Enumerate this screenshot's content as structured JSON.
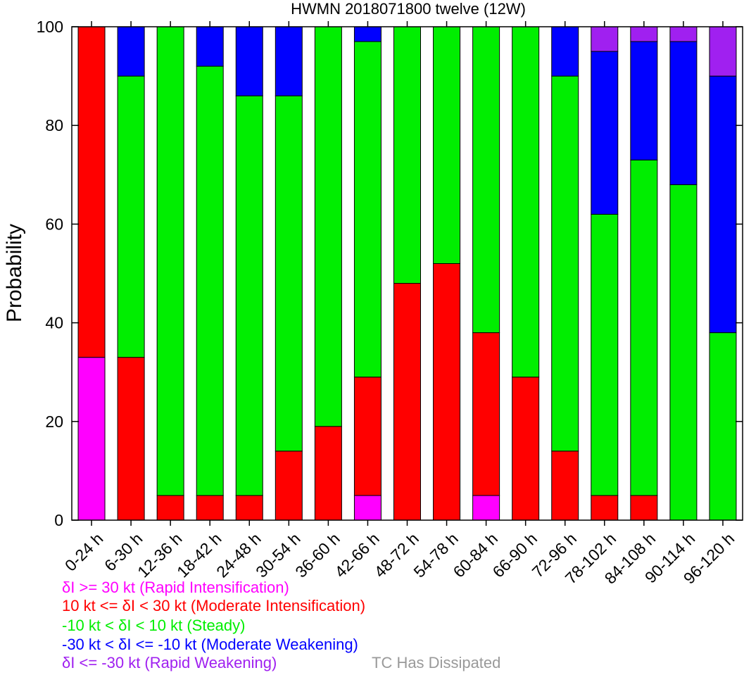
{
  "chart_data": {
    "type": "bar",
    "stacked": true,
    "title": "HWMN 2018071800 twelve (12W)",
    "ylabel": "Probability",
    "xlabel": "",
    "ylim": [
      0,
      100
    ],
    "yticks": [
      0,
      20,
      40,
      60,
      80,
      100
    ],
    "grid": false,
    "categories": [
      "0-24 h",
      "6-30 h",
      "12-36 h",
      "18-42 h",
      "24-48 h",
      "30-54 h",
      "36-60 h",
      "42-66 h",
      "48-72 h",
      "54-78 h",
      "60-84 h",
      "66-90 h",
      "72-96 h",
      "78-102 h",
      "84-108 h",
      "90-114 h",
      "96-120 h"
    ],
    "series": [
      {
        "name": "δI >= 30 kt (Rapid Intensification)",
        "color": "#ff00ff",
        "values": [
          33,
          0,
          0,
          0,
          0,
          0,
          0,
          5,
          0,
          0,
          5,
          0,
          0,
          0,
          0,
          0,
          0
        ]
      },
      {
        "name": "10 kt <= δI < 30 kt (Moderate Intensification)",
        "color": "#ff0000",
        "values": [
          67,
          33,
          5,
          5,
          5,
          14,
          19,
          24,
          48,
          52,
          33,
          29,
          14,
          5,
          5,
          0,
          0
        ]
      },
      {
        "name": "-10 kt < δI < 10 kt (Steady)",
        "color": "#00ee00",
        "values": [
          0,
          57,
          95,
          87,
          81,
          72,
          81,
          68,
          52,
          48,
          62,
          71,
          76,
          57,
          68,
          68,
          38
        ]
      },
      {
        "name": "-30 kt < δI <= -10 kt (Moderate Weakening)",
        "color": "#0000ff",
        "values": [
          0,
          10,
          0,
          8,
          14,
          14,
          0,
          3,
          0,
          0,
          0,
          0,
          10,
          33,
          24,
          29,
          52
        ]
      },
      {
        "name": "δI <= -30 kt (Rapid Weakening)",
        "color": "#a020f0",
        "values": [
          0,
          0,
          0,
          0,
          0,
          0,
          0,
          0,
          0,
          0,
          0,
          0,
          0,
          5,
          3,
          3,
          10
        ]
      }
    ],
    "legend_placement": "bottom-left",
    "dissipated_label": "TC Has Dissipated",
    "dissipated_color": "#999999"
  }
}
